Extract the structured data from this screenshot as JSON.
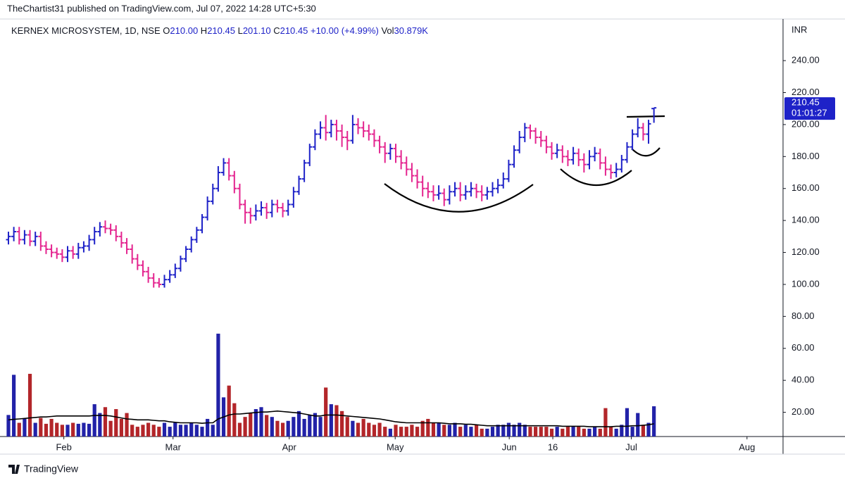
{
  "header": {
    "publisher": "TheChartist31 published on TradingView.com, Jul 07, 2022 14:28 UTC+5:30"
  },
  "footer": {
    "brand": "TradingView"
  },
  "chart_data": {
    "type": "ohlc",
    "legend": {
      "symbol": "KERNEX MICROSYSTEM, 1D, NSE",
      "o_label": "O",
      "o": "210.00",
      "h_label": "H",
      "h": "210.45",
      "l_label": "L",
      "l": "201.10",
      "c_label": "C",
      "c": "210.45",
      "change": "+10.00 (+4.99%)",
      "vol_label": "Vol",
      "vol": "30.879K"
    },
    "currency": "INR",
    "last_price": {
      "label": "210.45",
      "countdown": "01:01:27",
      "value": 210.45
    },
    "up_color": "#1e22c8",
    "down_color": "#e4248f",
    "volume_up_color": "#2222a8",
    "volume_down_color": "#b3262a",
    "volume_ma_color": "#000000",
    "xlim": [
      -0.26,
      144
    ],
    "xticks": [
      {
        "value": 10.3,
        "label": "Feb"
      },
      {
        "value": 30.6,
        "label": "Mar"
      },
      {
        "value": 52.2,
        "label": "Apr"
      },
      {
        "value": 71.9,
        "label": "May"
      },
      {
        "value": 93.1,
        "label": "Jun"
      },
      {
        "value": 101.2,
        "label": "16"
      },
      {
        "value": 115.8,
        "label": "Jul"
      },
      {
        "value": 137.3,
        "label": "Aug"
      }
    ],
    "ylim": [
      4.85,
      264.7
    ],
    "yticks": [
      {
        "value": 20,
        "label": "20.00"
      },
      {
        "value": 40,
        "label": "40.00"
      },
      {
        "value": 60,
        "label": "60.00"
      },
      {
        "value": 80,
        "label": "80.00"
      },
      {
        "value": 100,
        "label": "100.00"
      },
      {
        "value": 120,
        "label": "120.00"
      },
      {
        "value": 140,
        "label": "140.00"
      },
      {
        "value": 160,
        "label": "160.00"
      },
      {
        "value": 180,
        "label": "180.00"
      },
      {
        "value": 200,
        "label": "200.00"
      },
      {
        "value": 220,
        "label": "220.00"
      },
      {
        "value": 240,
        "label": "240.00"
      }
    ],
    "volume_ylim": [
      0,
      424
    ],
    "open": [
      128,
      130,
      133,
      128,
      131,
      127,
      130,
      124,
      122,
      120,
      119,
      117,
      121,
      119,
      123,
      124,
      128,
      133,
      136,
      135,
      134,
      130,
      126,
      122,
      116,
      112,
      108,
      104,
      101,
      100,
      103,
      106,
      110,
      116,
      122,
      128,
      134,
      142,
      152,
      160,
      170,
      176,
      168,
      160,
      150,
      145,
      143,
      146,
      148,
      145,
      150,
      148,
      146,
      150,
      158,
      166,
      176,
      186,
      194,
      198,
      195,
      200,
      196,
      192,
      190,
      200,
      198,
      196,
      194,
      190,
      186,
      182,
      185,
      180,
      176,
      172,
      168,
      164,
      160,
      158,
      156,
      157,
      153,
      158,
      160,
      156,
      158,
      160,
      158,
      156,
      158,
      160,
      162,
      166,
      175,
      184,
      192,
      198,
      196,
      192,
      190,
      186,
      182,
      184,
      180,
      178,
      182,
      178,
      175,
      180,
      182,
      176,
      172,
      170,
      172,
      178,
      186,
      194,
      198,
      194,
      210
    ],
    "high": [
      133,
      136,
      136,
      134,
      134,
      133,
      133,
      127,
      125,
      123,
      122,
      124,
      124,
      126,
      127,
      131,
      136,
      139,
      140,
      138,
      137,
      133,
      129,
      125,
      119,
      115,
      111,
      107,
      104,
      106,
      109,
      113,
      118,
      124,
      130,
      136,
      144,
      155,
      163,
      174,
      179,
      179,
      171,
      163,
      153,
      148,
      150,
      152,
      151,
      153,
      153,
      151,
      153,
      161,
      168,
      178,
      188,
      197,
      202,
      206,
      203,
      203,
      200,
      196,
      206,
      204,
      202,
      200,
      197,
      193,
      189,
      188,
      188,
      184,
      180,
      176,
      172,
      168,
      164,
      162,
      162,
      160,
      162,
      164,
      164,
      162,
      164,
      163,
      162,
      161,
      164,
      166,
      170,
      178,
      187,
      196,
      201,
      200,
      198,
      196,
      193,
      189,
      188,
      187,
      184,
      186,
      185,
      182,
      184,
      186,
      185,
      180,
      175,
      176,
      181,
      189,
      197,
      204,
      201,
      203,
      210.45
    ],
    "low": [
      125,
      127,
      125,
      125,
      124,
      124,
      121,
      119,
      117,
      116,
      114,
      114,
      116,
      116,
      120,
      121,
      125,
      130,
      132,
      131,
      127,
      123,
      119,
      113,
      109,
      105,
      101,
      98,
      98,
      98,
      101,
      104,
      108,
      114,
      120,
      126,
      132,
      140,
      150,
      158,
      168,
      165,
      157,
      147,
      138,
      138,
      140,
      143,
      141,
      142,
      145,
      142,
      143,
      148,
      156,
      164,
      174,
      184,
      191,
      190,
      192,
      190,
      186,
      184,
      188,
      194,
      192,
      190,
      186,
      182,
      176,
      178,
      176,
      172,
      168,
      164,
      160,
      155,
      154,
      152,
      153,
      149,
      150,
      155,
      152,
      153,
      155,
      154,
      152,
      153,
      155,
      157,
      160,
      164,
      173,
      182,
      189,
      191,
      188,
      186,
      182,
      178,
      179,
      176,
      174,
      175,
      174,
      170,
      172,
      177,
      172,
      168,
      166,
      167,
      170,
      176,
      184,
      192,
      190,
      188,
      201.1
    ],
    "close": [
      130,
      133,
      128,
      131,
      127,
      130,
      124,
      122,
      120,
      119,
      117,
      121,
      119,
      123,
      124,
      128,
      133,
      136,
      135,
      134,
      130,
      126,
      122,
      116,
      112,
      108,
      104,
      101,
      100,
      103,
      106,
      110,
      116,
      122,
      128,
      134,
      142,
      152,
      160,
      170,
      176,
      168,
      160,
      150,
      145,
      143,
      146,
      148,
      145,
      150,
      148,
      146,
      150,
      158,
      166,
      176,
      186,
      194,
      198,
      195,
      200,
      196,
      192,
      190,
      200,
      198,
      196,
      194,
      190,
      186,
      182,
      185,
      180,
      176,
      172,
      168,
      164,
      160,
      158,
      156,
      157,
      153,
      158,
      160,
      156,
      158,
      160,
      158,
      156,
      158,
      160,
      162,
      166,
      175,
      184,
      192,
      198,
      196,
      192,
      190,
      186,
      182,
      184,
      180,
      178,
      182,
      178,
      175,
      180,
      182,
      176,
      172,
      170,
      172,
      178,
      186,
      194,
      198,
      194,
      200.45,
      210.45
    ],
    "volume": [
      22,
      63,
      14,
      18,
      64,
      14,
      19,
      13,
      18,
      14,
      12,
      12,
      14,
      13,
      14,
      13,
      33,
      24,
      30,
      16,
      28,
      18,
      24,
      12,
      10,
      12,
      14,
      12,
      10,
      14,
      10,
      14,
      12,
      12,
      14,
      12,
      10,
      18,
      12,
      105,
      40,
      52,
      34,
      14,
      20,
      24,
      28,
      30,
      22,
      20,
      16,
      14,
      16,
      20,
      26,
      18,
      22,
      24,
      20,
      50,
      33,
      32,
      26,
      20,
      16,
      14,
      18,
      14,
      12,
      14,
      10,
      8,
      12,
      10,
      10,
      12,
      10,
      16,
      18,
      14,
      14,
      12,
      12,
      14,
      10,
      12,
      10,
      12,
      8,
      8,
      10,
      12,
      12,
      14,
      12,
      14,
      12,
      10,
      10,
      10,
      10,
      8,
      10,
      8,
      10,
      10,
      10,
      8,
      8,
      10,
      8,
      29,
      10,
      8,
      12,
      29,
      10,
      24,
      12,
      14,
      30.879
    ],
    "volume_ma": [
      17,
      17.5,
      18,
      18.5,
      19,
      19.5,
      20,
      20,
      20.5,
      21,
      21,
      21,
      21,
      21,
      21,
      21,
      21.5,
      21.5,
      21.5,
      21,
      20,
      19,
      18,
      17.5,
      17,
      17,
      17,
      16.5,
      16,
      16,
      15,
      14.5,
      14,
      14,
      14,
      14,
      13.5,
      14,
      14,
      18,
      20,
      22,
      23,
      23,
      23.5,
      24,
      24.5,
      25,
      25,
      25.5,
      26,
      25.5,
      25,
      24.5,
      24,
      23,
      22,
      21,
      21,
      22,
      22,
      22,
      21.5,
      21,
      20.5,
      20,
      19.5,
      19,
      18.5,
      18,
      17,
      16,
      15,
      14.5,
      14,
      14,
      14,
      14,
      14,
      14,
      14,
      13.5,
      13,
      13,
      13,
      12.5,
      12.5,
      12,
      11.5,
      11,
      11,
      11,
      11,
      11,
      11,
      11,
      11,
      11,
      11,
      11,
      11,
      11,
      11,
      10.5,
      10.5,
      10.5,
      10.5,
      10.5,
      10,
      10,
      10,
      10,
      10,
      10.5,
      10.5,
      10.5,
      11,
      11,
      11.5,
      12,
      13
    ]
  }
}
